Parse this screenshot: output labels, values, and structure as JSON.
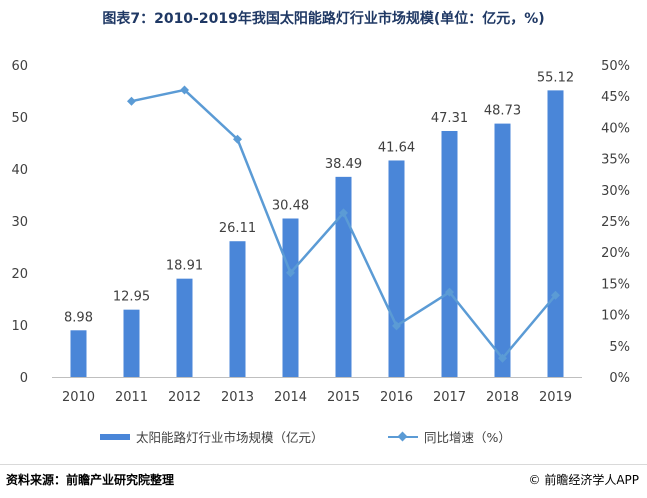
{
  "title": "图表7：2010-2019年我国太阳能路灯行业市场规模(单位：亿元，%)",
  "source": "资料来源：前瞻产业研究院整理",
  "brand": "© 前瞻经济学人APP",
  "colors": {
    "bar": "#4a86d8",
    "line": "#5b9bd5",
    "title": "#1f3864",
    "axis_text": "#404040",
    "grid": "#d9d9d9"
  },
  "chart_data": {
    "type": "bar",
    "categories": [
      "2010",
      "2011",
      "2012",
      "2013",
      "2014",
      "2015",
      "2016",
      "2017",
      "2018",
      "2019"
    ],
    "series": [
      {
        "name": "太阳能路灯行业市场规模（亿元）",
        "type": "bar",
        "axis": "left",
        "values": [
          8.98,
          12.95,
          18.91,
          26.11,
          30.48,
          38.49,
          41.64,
          47.31,
          48.73,
          55.12
        ],
        "labels": [
          "8.98",
          "12.95",
          "18.91",
          "26.11",
          "30.48",
          "38.49",
          "41.64",
          "47.31",
          "48.73",
          "55.12"
        ]
      },
      {
        "name": "同比增速（%）",
        "type": "line",
        "axis": "right",
        "values": [
          null,
          44.2,
          46.0,
          38.1,
          16.7,
          26.3,
          8.2,
          13.6,
          3.0,
          13.1
        ]
      }
    ],
    "y_left": {
      "min": 0,
      "max": 60,
      "ticks": [
        "0",
        "10",
        "20",
        "30",
        "40",
        "50",
        "60"
      ]
    },
    "y_right": {
      "min": 0,
      "max": 50,
      "ticks": [
        "0%",
        "5%",
        "10%",
        "15%",
        "20%",
        "25%",
        "30%",
        "35%",
        "40%",
        "45%",
        "50%"
      ]
    },
    "grid": false,
    "legend_position": "bottom"
  }
}
